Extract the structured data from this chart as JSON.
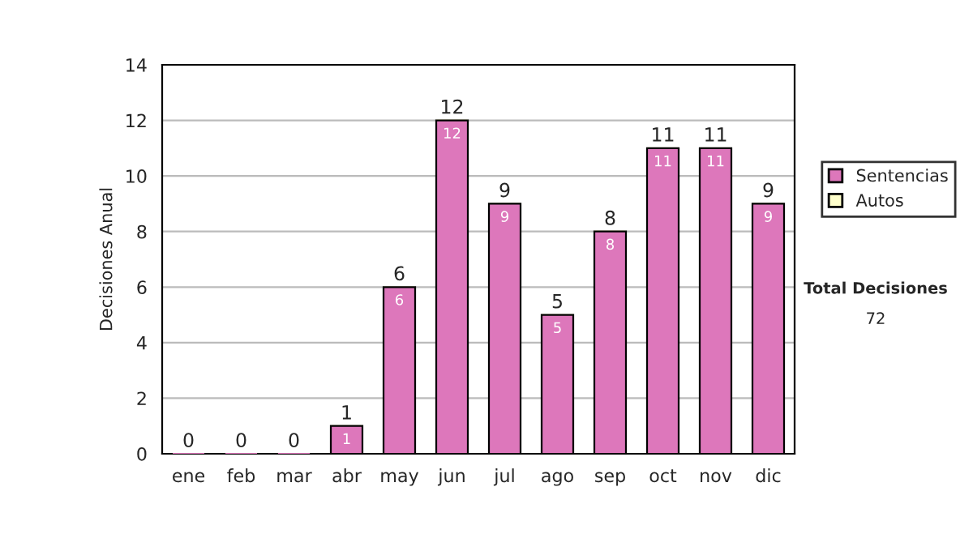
{
  "chart_data": {
    "type": "bar",
    "ylabel": "Decisiones Anual",
    "categories": [
      "ene",
      "feb",
      "mar",
      "abr",
      "may",
      "jun",
      "jul",
      "ago",
      "sep",
      "oct",
      "nov",
      "dic"
    ],
    "series": [
      {
        "name": "Sentencias",
        "color": "#dd77bb",
        "values": [
          0,
          0,
          0,
          1,
          6,
          12,
          9,
          5,
          8,
          11,
          11,
          9
        ],
        "value_labels": [
          null,
          null,
          null,
          "1",
          "6",
          "12",
          "9",
          "5",
          "8",
          "11",
          "11",
          "9"
        ]
      },
      {
        "name": "Autos",
        "color": "#ffffcc",
        "values": [
          0,
          0,
          0,
          0,
          0,
          0,
          0,
          0,
          0,
          0,
          0,
          0
        ]
      }
    ],
    "stacked": true,
    "totals": [
      "0",
      "0",
      "0",
      "1",
      "6",
      "12",
      "9",
      "5",
      "8",
      "11",
      "11",
      "9"
    ],
    "ylim": [
      0,
      14
    ],
    "yticks": [
      0,
      2,
      4,
      6,
      8,
      10,
      12,
      14
    ],
    "grid": "y",
    "legend": "right",
    "annotations": [
      "Total Decisiones",
      "72"
    ]
  }
}
